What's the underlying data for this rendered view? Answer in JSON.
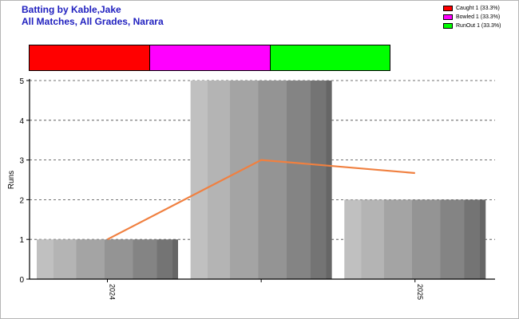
{
  "header": {
    "title_line1": "Batting by Kable,Jake",
    "title_line2": "All Matches, All Grades, Narara"
  },
  "legend": {
    "items": [
      {
        "label": "Caught 1 (33.3%)",
        "color": "#ff0000"
      },
      {
        "label": "Bowled 1 (33.3%)",
        "color": "#ff00ff"
      },
      {
        "label": "RunOut 1 (33.3%)",
        "color": "#00ff00"
      }
    ]
  },
  "chart_data": {
    "type": "bar",
    "ylabel": "Runs",
    "ylim": [
      0,
      5
    ],
    "yticks": [
      "0",
      "1",
      "2",
      "3",
      "4",
      "5"
    ],
    "bars": [
      {
        "category": "2024",
        "value": 1
      },
      {
        "category": "",
        "value": 5
      },
      {
        "category": "2025",
        "value": 2
      }
    ],
    "line": {
      "color": "#f08040",
      "values": [
        1,
        3,
        2.67
      ]
    },
    "dismissals": [
      {
        "label": "Caught",
        "count": 1,
        "color": "#ff0000"
      },
      {
        "label": "Bowled",
        "count": 1,
        "color": "#ff00ff"
      },
      {
        "label": "RunOut",
        "count": 1,
        "color": "#00ff00"
      }
    ],
    "grid": true,
    "legend_position": "top-right"
  }
}
